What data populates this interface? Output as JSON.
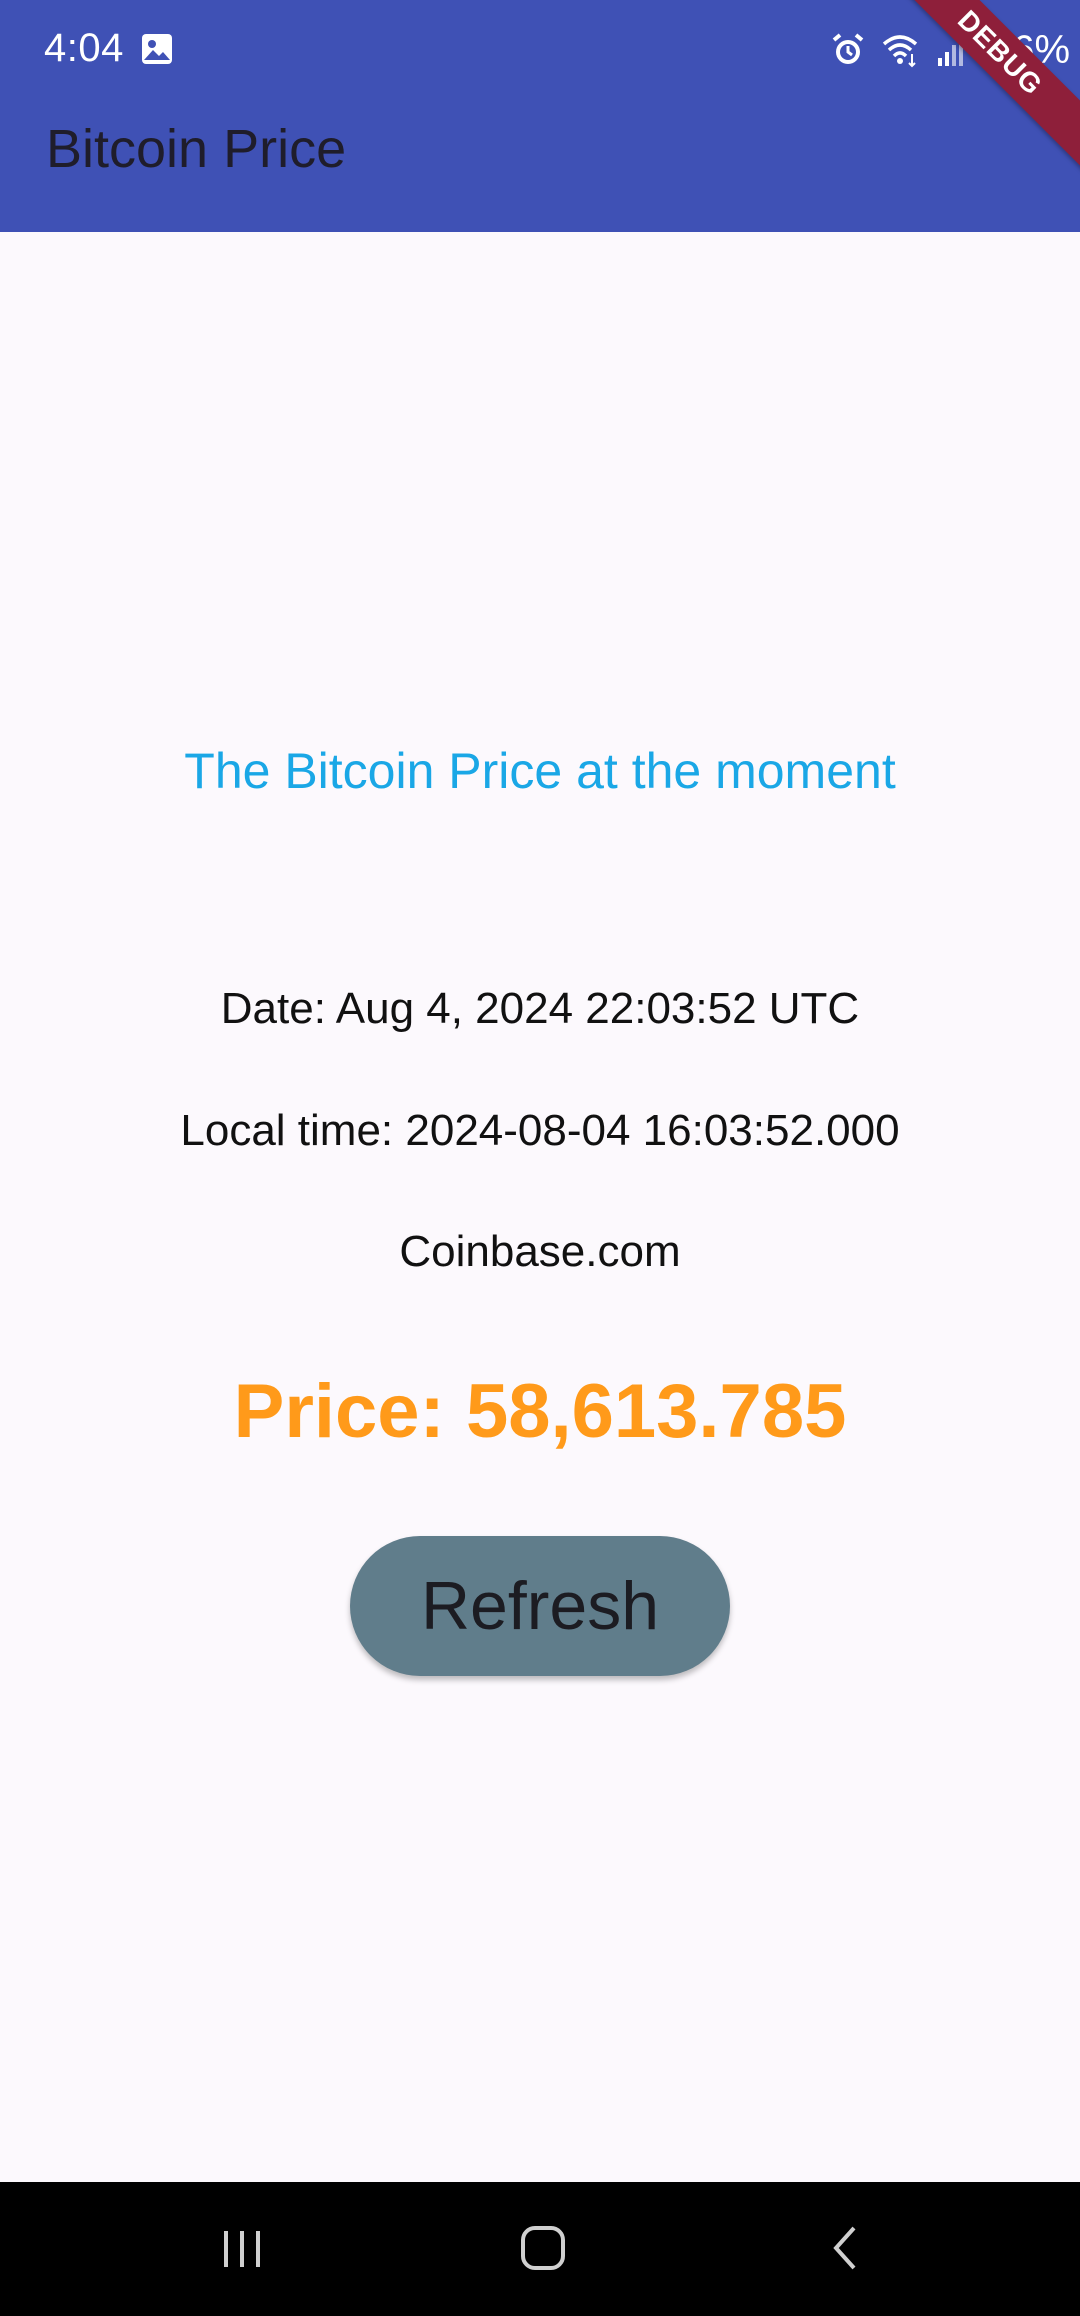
{
  "status_bar": {
    "time": "4:04",
    "battery": "66%"
  },
  "debug_banner": "DEBUG",
  "app_bar": {
    "title": "Bitcoin Price"
  },
  "main": {
    "headline": "The Bitcoin Price at the moment",
    "date": "Date: Aug 4, 2024 22:03:52 UTC",
    "local_time": "Local time: 2024-08-04 16:03:52.000",
    "source": "Coinbase.com",
    "price": "Price: 58,613.785",
    "refresh_label": "Refresh"
  },
  "icons": {
    "status": [
      "image-icon",
      "alarm-icon",
      "wifi-icon",
      "signal-icon",
      "battery-icon"
    ],
    "nav": [
      "recents-icon",
      "home-icon",
      "back-icon"
    ]
  },
  "colors": {
    "app_bar": "#3f51b5",
    "background": "#fcf9fd",
    "headline": "#1aa7e6",
    "price": "#ff9a1a",
    "button": "#607d8b",
    "debug_ribbon": "#8e1f3a"
  }
}
